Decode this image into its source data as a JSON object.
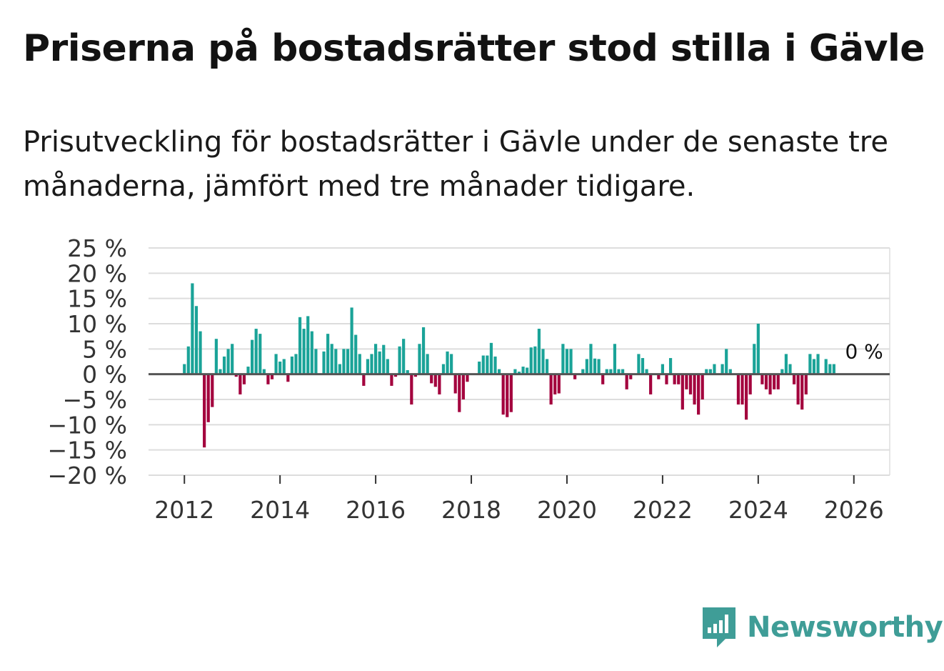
{
  "title": "Priserna på bostadsrätter stod stilla i Gävle",
  "subtitle": "Prisutveckling för bostadsrätter i Gävle under de senaste tre månaderna, jämfört med tre månader tidigare.",
  "brand": "Newsworthy",
  "colors": {
    "positive": "#1aa398",
    "negative": "#a3003d",
    "grid": "#dddddd",
    "zero": "#555555",
    "brand": "#3f9d97"
  },
  "chart_data": {
    "type": "bar",
    "start": "2012-01",
    "ylim": [
      -20,
      25
    ],
    "xlim": [
      2011.25,
      2026.75
    ],
    "yticks": [
      25,
      20,
      15,
      10,
      5,
      0,
      -5,
      -10,
      -15,
      -20
    ],
    "ytick_labels": [
      "25 %",
      "20 %",
      "15 %",
      "10 %",
      "5 %",
      "0 %",
      "−5 %",
      "−10 %",
      "−15 %",
      "−20 %"
    ],
    "xticks": [
      2012,
      2014,
      2016,
      2018,
      2020,
      2022,
      2024,
      2026
    ],
    "xtick_labels": [
      "2012",
      "2014",
      "2016",
      "2018",
      "2020",
      "2022",
      "2024",
      "2026"
    ],
    "end_label": "0 %",
    "values": [
      2,
      5.5,
      18,
      13.5,
      8.5,
      -14.5,
      -9.5,
      -6.5,
      7,
      1,
      3.5,
      5,
      6,
      -0.5,
      -4,
      -2,
      1.5,
      6.8,
      9,
      8,
      1,
      -2,
      -1,
      4,
      2.5,
      3,
      -1.5,
      3.5,
      4,
      11.3,
      9,
      11.5,
      8.5,
      5,
      0,
      4.5,
      8,
      6,
      5,
      2,
      5,
      5,
      13.2,
      7.8,
      4,
      -2.3,
      3,
      4,
      6,
      4.5,
      5.8,
      3,
      -2.3,
      -0.5,
      5.5,
      7,
      0.8,
      -6,
      -0.5,
      6,
      9.3,
      4,
      -1.8,
      -2.5,
      -4,
      2,
      4.5,
      4,
      -3.8,
      -7.5,
      -5,
      -1.5,
      0,
      0,
      2.5,
      3.7,
      3.7,
      6.2,
      3.5,
      1,
      -8,
      -8.5,
      -7.5,
      1,
      0.5,
      1.5,
      1.3,
      5.3,
      5.5,
      9,
      5,
      3,
      -6,
      -4,
      -3.8,
      6,
      5,
      5,
      -1,
      0,
      1,
      3,
      6,
      3.1,
      3,
      -2,
      1,
      1,
      6,
      1,
      1,
      -3,
      -1,
      0,
      4,
      3.2,
      1,
      -4,
      0,
      -1,
      2,
      -2,
      3.2,
      -2,
      -2,
      -7,
      -3,
      -4,
      -6,
      -8,
      -5,
      1,
      1,
      2,
      0,
      2,
      5,
      1,
      0,
      -6,
      -6,
      -9,
      -4,
      6,
      10,
      -2,
      -3,
      -4,
      -3,
      -3,
      1,
      4,
      2,
      -2,
      -6,
      -7,
      -4,
      4,
      3,
      4,
      0,
      3,
      2,
      2,
      0
    ]
  }
}
